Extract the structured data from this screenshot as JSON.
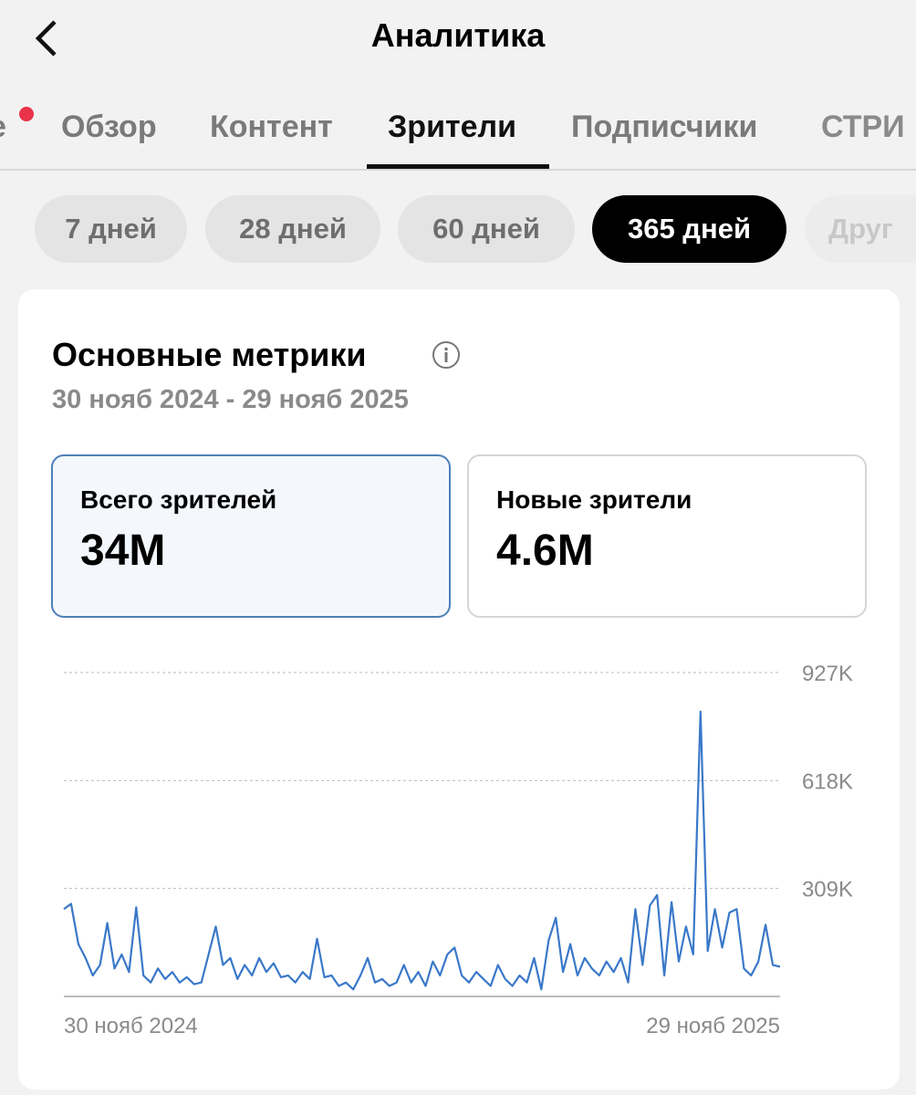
{
  "header": {
    "title": "Аналитика"
  },
  "tabs": [
    "е",
    "Обзор",
    "Контент",
    "Зрители",
    "Подписчики",
    "СТРИ"
  ],
  "active_tab": 3,
  "filters": [
    "7 дней",
    "28 дней",
    "60 дней",
    "365 дней",
    "Друг"
  ],
  "active_filter": 3,
  "card": {
    "title": "Основные метрики",
    "date_range": "30 нояб 2024 - 29 нояб 2025",
    "metrics": [
      {
        "label": "Всего зрителей",
        "value": "34M"
      },
      {
        "label": "Новые зрители",
        "value": "4.6M"
      }
    ]
  },
  "chart_data": {
    "type": "line",
    "color": "#3a78c9",
    "grid": true,
    "ylim": [
      0,
      927
    ],
    "yticks": [
      {
        "value": 309,
        "label": "309K"
      },
      {
        "value": 618,
        "label": "618K"
      },
      {
        "value": 927,
        "label": "927K"
      }
    ],
    "categories": [
      "30 нояб 2024",
      null,
      null,
      null,
      null,
      null,
      null,
      null,
      null,
      null,
      null,
      null,
      null,
      null,
      null,
      null,
      null,
      null,
      null,
      null,
      null,
      null,
      null,
      null,
      null,
      null,
      null,
      null,
      null,
      null,
      null,
      null,
      null,
      null,
      null,
      null,
      null,
      null,
      null,
      null,
      null,
      null,
      null,
      null,
      null,
      null,
      null,
      null,
      null,
      null,
      null,
      null,
      null,
      null,
      null,
      null,
      null,
      null,
      null,
      null,
      null,
      null,
      null,
      null,
      null,
      null,
      null,
      null,
      null,
      null,
      null,
      null,
      null,
      null,
      null,
      null,
      null,
      null,
      null,
      null,
      null,
      null,
      null,
      null,
      null,
      null,
      null,
      null,
      null,
      null,
      null,
      null,
      null,
      null,
      null,
      null,
      null,
      null,
      null,
      "29 нояб 2025"
    ],
    "values": [
      250,
      265,
      150,
      110,
      60,
      90,
      210,
      80,
      120,
      70,
      255,
      60,
      40,
      80,
      50,
      70,
      40,
      55,
      35,
      40,
      120,
      200,
      90,
      110,
      50,
      90,
      60,
      110,
      70,
      95,
      55,
      60,
      40,
      70,
      50,
      165,
      55,
      60,
      30,
      40,
      20,
      60,
      110,
      40,
      50,
      30,
      40,
      90,
      40,
      70,
      30,
      100,
      60,
      120,
      140,
      60,
      40,
      70,
      50,
      30,
      90,
      50,
      30,
      60,
      40,
      110,
      20,
      160,
      225,
      70,
      150,
      60,
      110,
      80,
      60,
      100,
      70,
      110,
      40,
      250,
      90,
      260,
      290,
      60,
      270,
      100,
      200,
      120,
      815,
      130,
      250,
      140,
      240,
      250,
      80,
      60,
      100,
      205,
      90,
      85
    ]
  }
}
